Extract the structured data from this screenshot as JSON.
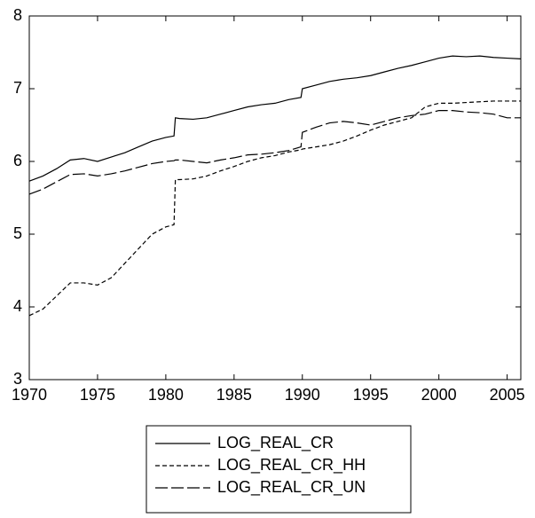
{
  "chart_data": {
    "type": "line",
    "x": [
      1970,
      1971,
      1972,
      1973,
      1974,
      1975,
      1976,
      1977,
      1978,
      1979,
      1980,
      1980.6,
      1980.7,
      1981,
      1982,
      1983,
      1984,
      1985,
      1986,
      1987,
      1988,
      1989,
      1989.9,
      1990,
      1991,
      1992,
      1993,
      1994,
      1995,
      1996,
      1997,
      1998,
      1999,
      2000,
      2001,
      2002,
      2003,
      2004,
      2005,
      2006
    ],
    "series": [
      {
        "name": "LOG_REAL_CR",
        "color": "#000000",
        "dash": "solid",
        "values": [
          5.73,
          5.8,
          5.9,
          6.02,
          6.04,
          6.0,
          6.06,
          6.12,
          6.2,
          6.28,
          6.33,
          6.35,
          6.6,
          6.59,
          6.58,
          6.6,
          6.65,
          6.7,
          6.75,
          6.78,
          6.8,
          6.85,
          6.88,
          7.0,
          7.05,
          7.1,
          7.13,
          7.15,
          7.18,
          7.23,
          7.28,
          7.32,
          7.37,
          7.42,
          7.45,
          7.44,
          7.45,
          7.43,
          7.42,
          7.41
        ]
      },
      {
        "name": "LOG_REAL_CR_HH",
        "color": "#000000",
        "dash": "short",
        "values": [
          3.88,
          3.97,
          4.15,
          4.33,
          4.33,
          4.3,
          4.4,
          4.6,
          4.8,
          5.0,
          5.1,
          5.13,
          5.75,
          5.75,
          5.76,
          5.8,
          5.87,
          5.93,
          6.0,
          6.05,
          6.08,
          6.13,
          6.16,
          6.17,
          6.2,
          6.23,
          6.28,
          6.35,
          6.43,
          6.5,
          6.55,
          6.6,
          6.75,
          6.8,
          6.8,
          6.81,
          6.82,
          6.83,
          6.83,
          6.83
        ]
      },
      {
        "name": "LOG_REAL_CR_UN",
        "color": "#000000",
        "dash": "long",
        "values": [
          5.55,
          5.62,
          5.72,
          5.82,
          5.83,
          5.8,
          5.83,
          5.87,
          5.92,
          5.97,
          6.0,
          6.01,
          6.02,
          6.02,
          6.0,
          5.98,
          6.02,
          6.05,
          6.09,
          6.1,
          6.12,
          6.15,
          6.2,
          6.4,
          6.47,
          6.53,
          6.55,
          6.53,
          6.5,
          6.55,
          6.6,
          6.63,
          6.65,
          6.7,
          6.7,
          6.68,
          6.67,
          6.65,
          6.6,
          6.6
        ]
      }
    ],
    "xlim": [
      1970,
      2006
    ],
    "xticks": [
      1970,
      1975,
      1980,
      1985,
      1990,
      1995,
      2000,
      2005
    ],
    "ylim": [
      3,
      8
    ],
    "yticks": [
      3,
      4,
      5,
      6,
      7,
      8
    ],
    "grid": false
  }
}
